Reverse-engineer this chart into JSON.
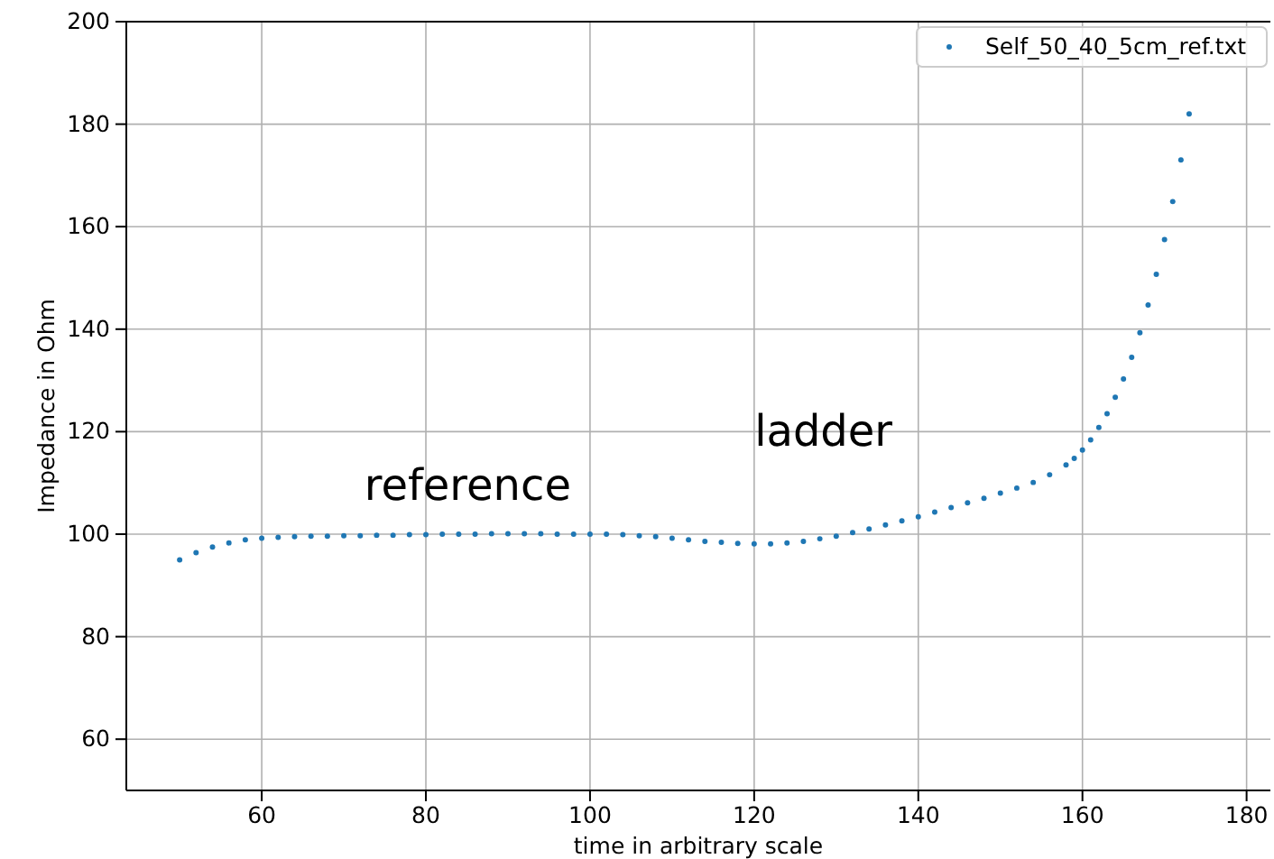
{
  "chart_data": {
    "type": "scatter",
    "xlabel": "time in arbitrary scale",
    "ylabel": "Impedance in Ohm",
    "xlim": [
      43.5,
      182.9
    ],
    "ylim": [
      50,
      200
    ],
    "xticks": [
      60,
      80,
      100,
      120,
      140,
      160,
      180
    ],
    "yticks": [
      60,
      80,
      100,
      120,
      140,
      160,
      180,
      200
    ],
    "grid": true,
    "legend": "top right",
    "marker": "circle",
    "x": [
      50,
      52,
      54,
      56,
      58,
      60,
      62,
      64,
      66,
      68,
      70,
      72,
      74,
      76,
      78,
      80,
      82,
      84,
      86,
      88,
      90,
      92,
      94,
      96,
      98,
      100,
      102,
      104,
      106,
      108,
      110,
      112,
      114,
      116,
      118,
      120,
      122,
      124,
      126,
      128,
      130,
      132,
      134,
      136,
      138,
      140,
      142,
      144,
      146,
      148,
      150,
      152,
      154,
      156,
      158,
      159,
      160,
      161,
      162,
      163,
      164,
      165,
      166,
      167,
      168,
      169,
      170,
      171,
      172,
      173
    ],
    "series": [
      {
        "name": "Self_50_40_5cm_ref.txt",
        "color": "#1f77b4",
        "values": [
          95.0,
          96.4,
          97.5,
          98.3,
          98.9,
          99.2,
          99.4,
          99.5,
          99.6,
          99.6,
          99.7,
          99.7,
          99.8,
          99.8,
          99.9,
          99.9,
          100.0,
          100.0,
          100.0,
          100.1,
          100.1,
          100.1,
          100.1,
          100.0,
          100.0,
          100.0,
          100.0,
          99.9,
          99.7,
          99.5,
          99.2,
          98.9,
          98.6,
          98.4,
          98.2,
          98.1,
          98.1,
          98.3,
          98.6,
          99.1,
          99.6,
          100.3,
          101.0,
          101.8,
          102.6,
          103.4,
          104.3,
          105.2,
          106.1,
          107.0,
          108.0,
          109.0,
          110.1,
          111.6,
          113.5,
          114.8,
          116.4,
          118.4,
          120.8,
          123.5,
          126.7,
          130.3,
          134.5,
          139.3,
          144.7,
          150.7,
          157.5,
          164.9,
          173.0,
          182.0
        ]
      }
    ],
    "annotations": [
      "reference",
      "ladder"
    ]
  }
}
